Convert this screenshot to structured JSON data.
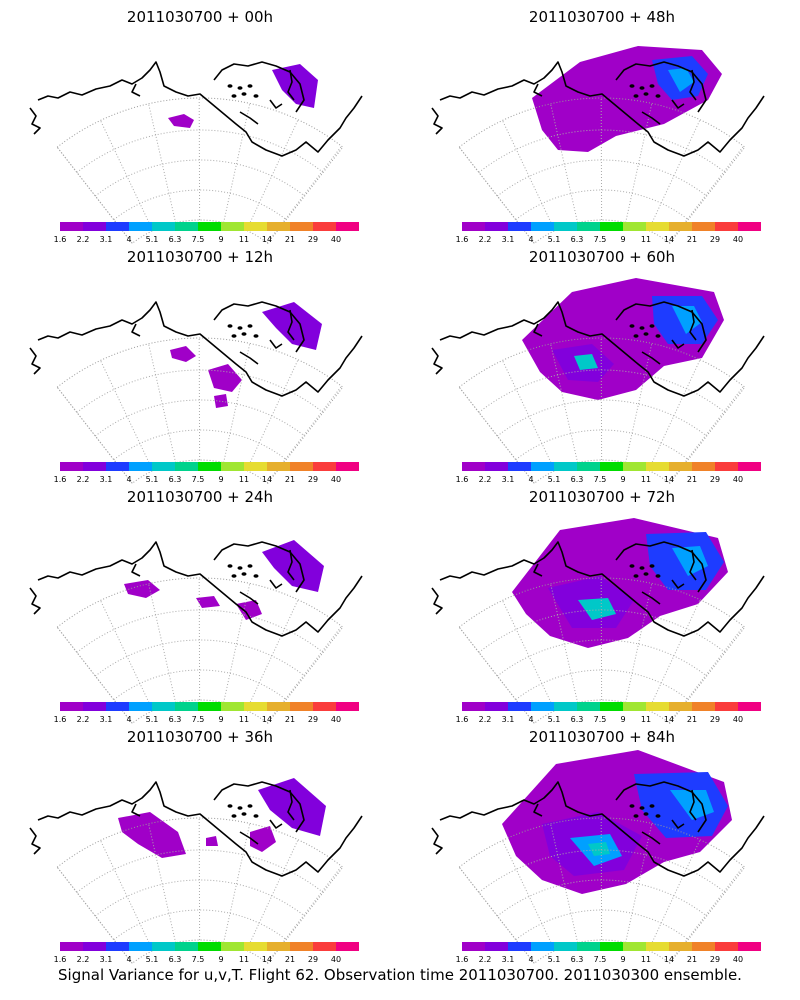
{
  "figure": {
    "footer": "Signal Variance for u,v,T. Flight 62. Observation time 2011030700. 2011030300 ensemble."
  },
  "colorbar": {
    "labels": [
      "1.6",
      "2.2",
      "3.1",
      "4",
      "5.1",
      "6.3",
      "7.5",
      "9",
      "11",
      "14",
      "21",
      "29",
      "40"
    ],
    "colors": [
      "#a000c8",
      "#8200dc",
      "#1e3cff",
      "#00a0ff",
      "#00c8c8",
      "#00d28c",
      "#00dc00",
      "#a0e632",
      "#e6dc32",
      "#e6af2d",
      "#f08228",
      "#fa3c3c",
      "#f00082"
    ]
  },
  "chart_data": [
    {
      "type": "heatmap",
      "title": "2011030700 + 00h",
      "column": "left",
      "row": 0,
      "max_level": 2
    },
    {
      "type": "heatmap",
      "title": "2011030700 + 12h",
      "column": "left",
      "row": 1,
      "max_level": 2
    },
    {
      "type": "heatmap",
      "title": "2011030700 + 24h",
      "column": "left",
      "row": 2,
      "max_level": 2
    },
    {
      "type": "heatmap",
      "title": "2011030700 + 36h",
      "column": "left",
      "row": 3,
      "max_level": 2
    },
    {
      "type": "heatmap",
      "title": "2011030700 + 48h",
      "column": "right",
      "row": 0,
      "max_level": 4
    },
    {
      "type": "heatmap",
      "title": "2011030700 + 60h",
      "column": "right",
      "row": 1,
      "max_level": 5
    },
    {
      "type": "heatmap",
      "title": "2011030700 + 72h",
      "column": "right",
      "row": 2,
      "max_level": 5
    },
    {
      "type": "heatmap",
      "title": "2011030700 + 84h",
      "column": "right",
      "row": 3,
      "max_level": 5
    }
  ]
}
